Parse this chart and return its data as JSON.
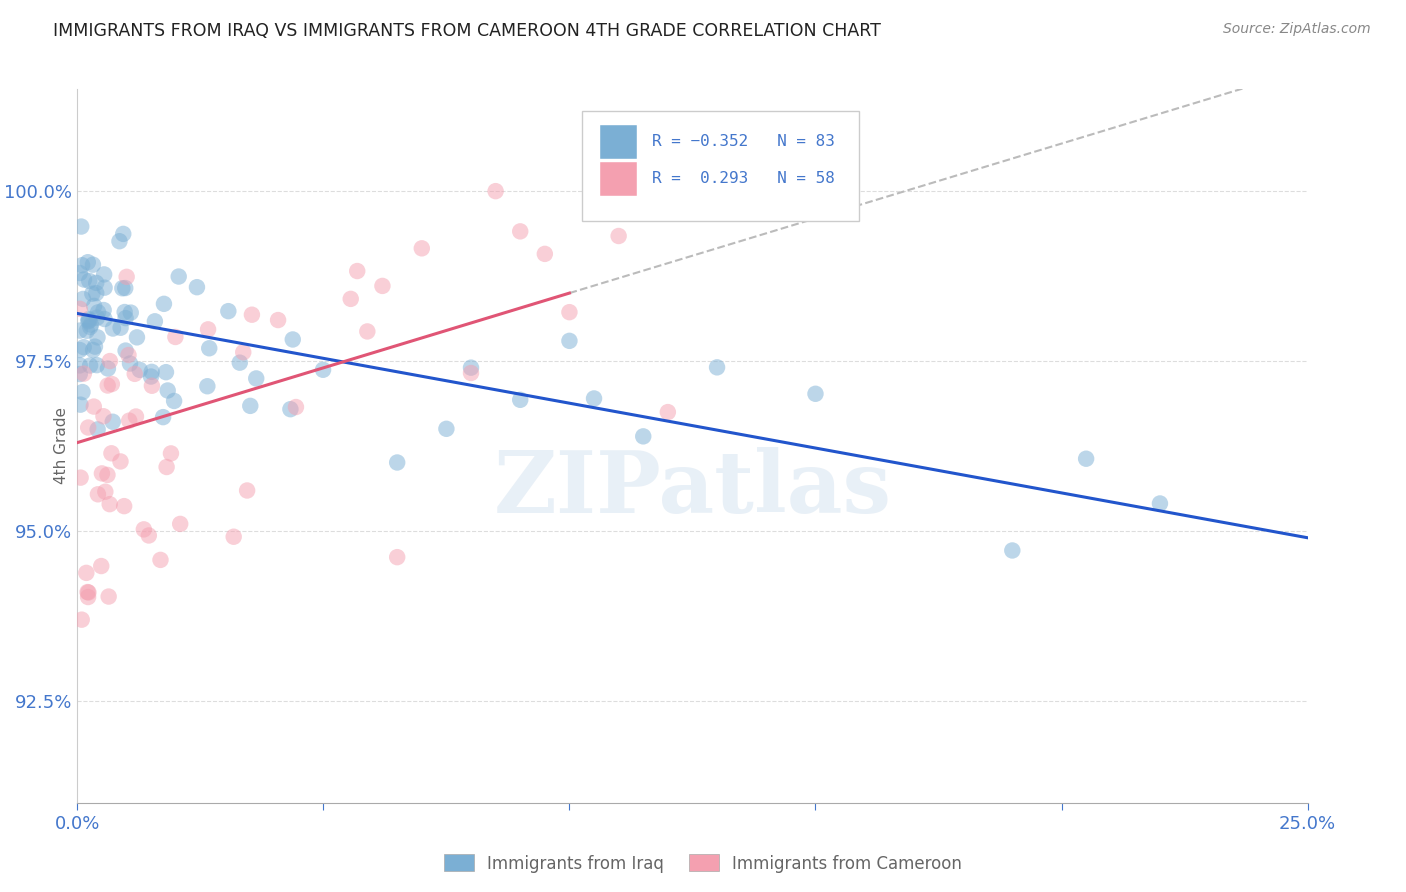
{
  "title": "IMMIGRANTS FROM IRAQ VS IMMIGRANTS FROM CAMEROON 4TH GRADE CORRELATION CHART",
  "source": "Source: ZipAtlas.com",
  "ylabel": "4th Grade",
  "xlim": [
    0.0,
    25.0
  ],
  "ylim": [
    91.0,
    101.5
  ],
  "xticks": [
    0.0,
    5.0,
    10.0,
    15.0,
    20.0,
    25.0
  ],
  "xticklabels": [
    "0.0%",
    "",
    "",
    "",
    "",
    "25.0%"
  ],
  "yticks": [
    92.5,
    95.0,
    97.5,
    100.0
  ],
  "yticklabels": [
    "92.5%",
    "95.0%",
    "97.5%",
    "100.0%"
  ],
  "R_iraq": -0.352,
  "N_iraq": 83,
  "R_cameroon": 0.293,
  "N_cameroon": 58,
  "color_iraq": "#7bafd4",
  "color_cameroon": "#f4a0b0",
  "color_trendline_iraq": "#2255cc",
  "color_trendline_cameroon": "#e05575",
  "color_trendline_ext": "#bbbbbb",
  "legend_label_iraq": "Immigrants from Iraq",
  "legend_label_cameroon": "Immigrants from Cameroon",
  "watermark": "ZIPatlas",
  "background_color": "#ffffff",
  "axis_color": "#4477cc",
  "title_color": "#222222",
  "source_color": "#888888",
  "grid_color": "#dddddd",
  "ylabel_color": "#666666",
  "iraq_intercept": 98.2,
  "iraq_slope": -0.132,
  "cam_intercept": 96.3,
  "cam_slope": 0.22
}
